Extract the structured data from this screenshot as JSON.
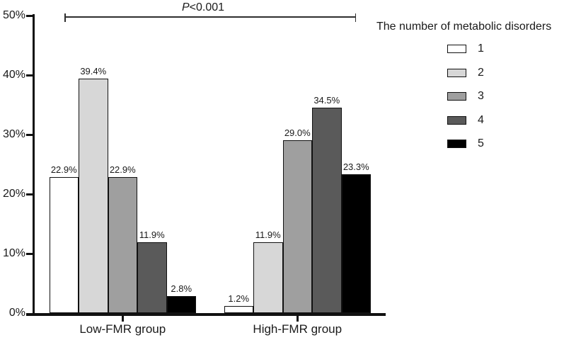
{
  "annotation": {
    "text": "P<0.001",
    "italic_part": "P",
    "rest": "<0.001"
  },
  "legend": {
    "title": "The number of metabolic disorders",
    "items": [
      {
        "label": "1",
        "color": "#ffffff"
      },
      {
        "label": "2",
        "color": "#d7d7d7"
      },
      {
        "label": "3",
        "color": "#9f9f9f"
      },
      {
        "label": "4",
        "color": "#5a5a5a"
      },
      {
        "label": "5",
        "color": "#000000"
      }
    ]
  },
  "chart_data": {
    "type": "bar",
    "title": "",
    "xlabel": "",
    "ylabel": "",
    "categories": [
      "Low-FMR group",
      "High-FMR group"
    ],
    "series": [
      {
        "name": "1",
        "color": "#ffffff",
        "values": [
          22.9,
          1.2
        ]
      },
      {
        "name": "2",
        "color": "#d7d7d7",
        "values": [
          39.4,
          11.9
        ]
      },
      {
        "name": "3",
        "color": "#9f9f9f",
        "values": [
          22.9,
          29.0
        ]
      },
      {
        "name": "4",
        "color": "#5a5a5a",
        "values": [
          11.9,
          34.5
        ]
      },
      {
        "name": "5",
        "color": "#000000",
        "values": [
          2.8,
          23.3
        ]
      }
    ],
    "value_labels": [
      [
        "22.9%",
        "39.4%",
        "22.9%",
        "11.9%",
        "2.8%"
      ],
      [
        "1.2%",
        "11.9%",
        "29.0%",
        "34.5%",
        "23.3%"
      ]
    ],
    "ylim": [
      0,
      50
    ],
    "yticks": [
      0,
      10,
      20,
      30,
      40,
      50
    ],
    "ytick_labels": [
      "0%",
      "10%",
      "20%",
      "30%",
      "40%",
      "50%"
    ],
    "grid": false,
    "legend_title": "The number of metabolic disorders",
    "legend_position": "right",
    "annotation": "P<0.001"
  }
}
